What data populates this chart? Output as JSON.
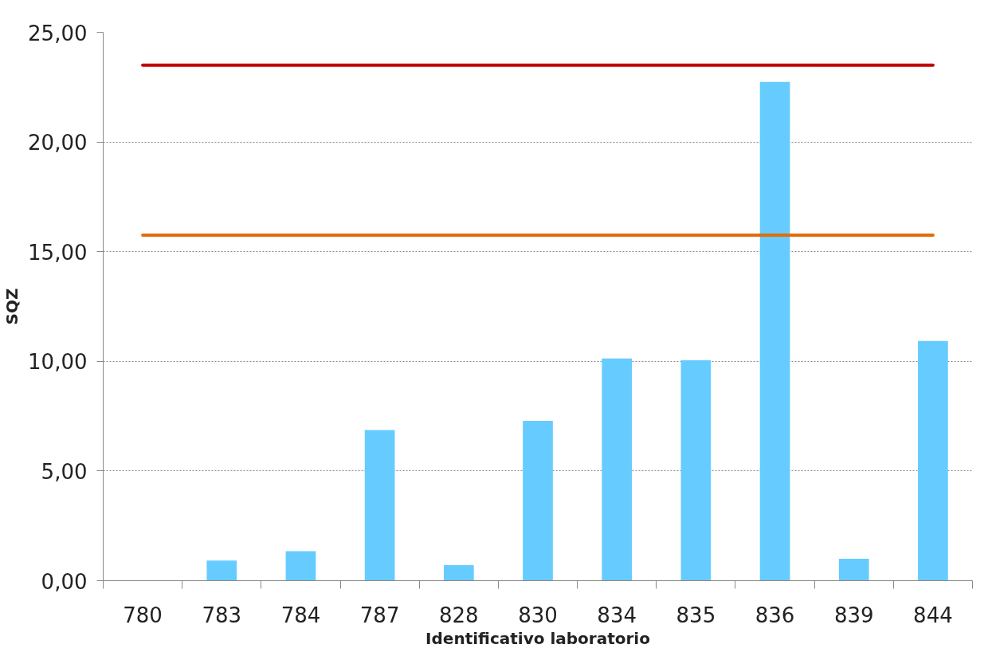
{
  "chart_data": {
    "type": "bar",
    "xlabel": "Identificativo laboratorio",
    "ylabel": "SQZ",
    "categories": [
      "780",
      "783",
      "784",
      "787",
      "828",
      "830",
      "834",
      "835",
      "836",
      "839",
      "844"
    ],
    "values": [
      0,
      0.92,
      1.34,
      6.87,
      0.71,
      7.29,
      10.13,
      10.05,
      22.74,
      1.0,
      10.93
    ],
    "color": "#66ccff",
    "ylim": [
      0,
      25
    ],
    "yticks": [
      {
        "value": 0,
        "label": "0,00"
      },
      {
        "value": 5,
        "label": "5,00"
      },
      {
        "value": 10,
        "label": "10,00"
      },
      {
        "value": 15,
        "label": "15,00"
      },
      {
        "value": 20,
        "label": "20,00"
      },
      {
        "value": 25,
        "label": "25,00"
      }
    ],
    "grid": "y",
    "ref_lines": [
      {
        "axis": "y",
        "value": 23.5,
        "color": "#c00000"
      },
      {
        "axis": "y",
        "value": 15.75,
        "color": "#e46c0a"
      }
    ]
  }
}
